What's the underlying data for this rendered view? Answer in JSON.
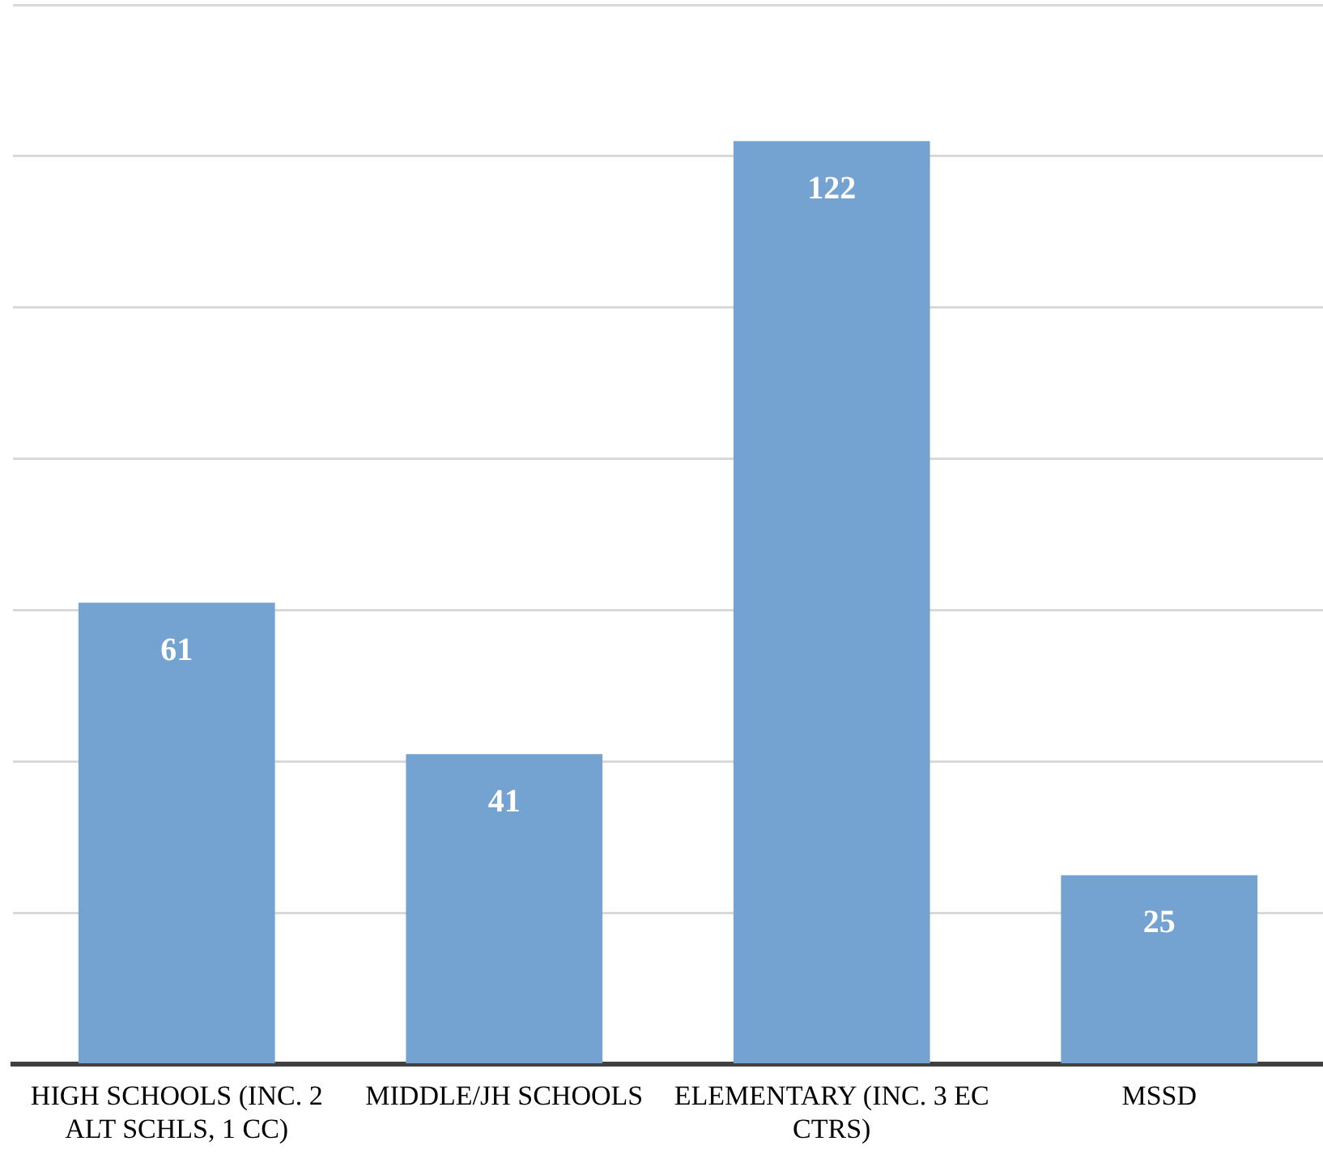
{
  "chart_data": {
    "type": "bar",
    "categories": [
      "HIGH SCHOOLS (INC. 2 ALT SCHLS, 1 CC)",
      "MIDDLE/JH SCHOOLS",
      "ELEMENTARY (INC. 3 EC CTRS)",
      "MSSD"
    ],
    "values": [
      61,
      41,
      122,
      25
    ],
    "color": "#75a3d1",
    "ylim": [
      0,
      140
    ],
    "yticks": [
      {
        "value": 0,
        "label": null
      },
      {
        "value": 20,
        "label": null
      },
      {
        "value": 40,
        "label": null
      },
      {
        "value": 60,
        "label": null
      },
      {
        "value": 80,
        "label": null
      },
      {
        "value": 100,
        "label": null
      },
      {
        "value": 120,
        "label": null
      },
      {
        "value": 140,
        "label": null
      }
    ],
    "grid": "y",
    "tick_labels": "x",
    "data_labels": true,
    "legend": false
  }
}
